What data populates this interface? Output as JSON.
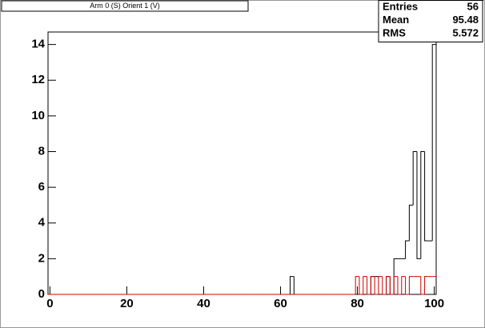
{
  "chart_data": {
    "type": "histogram",
    "title": "Arm 0 (S) Orient 1 (V)",
    "bins": [
      -0.5,
      0.5,
      1.5,
      2.5,
      3.5,
      4.5,
      5.5,
      6.5,
      7.5,
      8.5,
      9.5,
      10.5,
      11.5,
      12.5,
      13.5,
      14.5,
      15.5,
      16.5,
      17.5,
      18.5,
      19.5,
      20.5,
      21.5,
      22.5,
      23.5,
      24.5,
      25.5,
      26.5,
      27.5,
      28.5,
      29.5,
      30.5,
      31.5,
      32.5,
      33.5,
      34.5,
      35.5,
      36.5,
      37.5,
      38.5,
      39.5,
      40.5,
      41.5,
      42.5,
      43.5,
      44.5,
      45.5,
      46.5,
      47.5,
      48.5,
      49.5,
      50.5,
      51.5,
      52.5,
      53.5,
      54.5,
      55.5,
      56.5,
      57.5,
      58.5,
      59.5,
      60.5,
      61.5,
      62.5,
      63.5,
      64.5,
      65.5,
      66.5,
      67.5,
      68.5,
      69.5,
      70.5,
      71.5,
      72.5,
      73.5,
      74.5,
      75.5,
      76.5,
      77.5,
      78.5,
      79.5,
      80.5,
      81.5,
      82.5,
      83.5,
      84.5,
      85.5,
      86.5,
      87.5,
      88.5,
      89.5,
      90.5,
      91.5,
      92.5,
      93.5,
      94.5,
      95.5,
      96.5,
      97.5,
      98.5,
      99.5,
      100.5
    ],
    "series": [
      {
        "color": "#000000",
        "values": [
          0,
          0,
          0,
          0,
          0,
          0,
          0,
          0,
          0,
          0,
          0,
          0,
          0,
          0,
          0,
          0,
          0,
          0,
          0,
          0,
          0,
          0,
          0,
          0,
          0,
          0,
          0,
          0,
          0,
          0,
          0,
          0,
          0,
          0,
          0,
          0,
          0,
          0,
          0,
          0,
          0,
          0,
          0,
          0,
          0,
          0,
          0,
          0,
          0,
          0,
          0,
          0,
          0,
          0,
          0,
          0,
          0,
          0,
          0,
          0,
          0,
          0,
          0,
          1,
          0,
          0,
          0,
          0,
          0,
          0,
          0,
          0,
          0,
          0,
          0,
          0,
          0,
          0,
          0,
          0,
          0,
          0,
          0,
          0,
          1,
          1,
          0,
          0,
          1,
          0,
          2,
          2,
          2,
          3,
          5,
          8,
          2,
          8,
          3,
          3,
          14
        ]
      },
      {
        "color": "#d00000",
        "values": [
          0,
          0,
          0,
          0,
          0,
          0,
          0,
          0,
          0,
          0,
          0,
          0,
          0,
          0,
          0,
          0,
          0,
          0,
          0,
          0,
          0,
          0,
          0,
          0,
          0,
          0,
          0,
          0,
          0,
          0,
          0,
          0,
          0,
          0,
          0,
          0,
          0,
          0,
          0,
          0,
          0,
          0,
          0,
          0,
          0,
          0,
          0,
          0,
          0,
          0,
          0,
          0,
          0,
          0,
          0,
          0,
          0,
          0,
          0,
          0,
          0,
          0,
          0,
          0,
          0,
          0,
          0,
          0,
          0,
          0,
          0,
          0,
          0,
          0,
          0,
          0,
          0,
          0,
          0,
          0,
          1,
          0,
          1,
          0,
          1,
          0,
          1,
          0,
          1,
          0,
          1,
          0,
          1,
          0,
          1,
          1,
          1,
          0,
          1,
          1,
          1
        ]
      }
    ],
    "xlim": [
      -0.5,
      100.5
    ],
    "ylim": [
      0,
      14.7
    ],
    "xticks": [
      0,
      20,
      40,
      60,
      80,
      100
    ],
    "yticks": [
      0,
      2,
      4,
      6,
      8,
      10,
      12,
      14
    ],
    "stats": [
      {
        "label": "Entries",
        "value": 56
      },
      {
        "label": "Mean",
        "value": 95.48
      },
      {
        "label": "RMS",
        "value": 5.572
      }
    ]
  }
}
